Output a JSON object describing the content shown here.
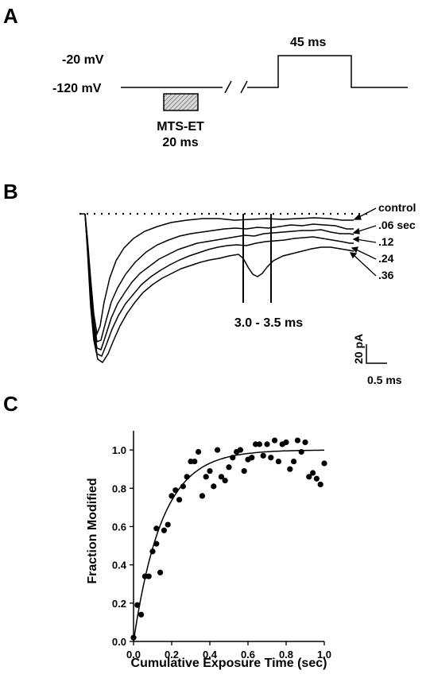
{
  "panels": {
    "a": {
      "letter": "A",
      "v_hold_label": "-20 mV",
      "v_base_label": "-120 mV",
      "pulse_label": "45 ms",
      "reagent_label": "MTS-ET",
      "reagent_duration": "20 ms"
    },
    "b": {
      "letter": "B",
      "trace_labels": [
        "control",
        ".06 sec",
        ".12",
        ".24",
        ".36"
      ],
      "window_label": "3.0 - 3.5 ms",
      "scale_y_label": "20 pA",
      "scale_x_label": "0.5 ms"
    },
    "c": {
      "letter": "C"
    }
  },
  "chart_data": {
    "type": "scatter",
    "xlabel": "Cumulative Exposure Time (sec)",
    "ylabel": "Fraction Modified",
    "xlim": [
      0.0,
      1.0
    ],
    "ylim": [
      0.0,
      1.1
    ],
    "xticks": [
      "0.0",
      "0.2",
      "0.4",
      "0.6",
      "0.8",
      "1.0"
    ],
    "yticks": [
      "0.0",
      "0.2",
      "0.4",
      "0.6",
      "0.8",
      "1.0"
    ],
    "grid": false,
    "points": [
      [
        0.0,
        0.02
      ],
      [
        0.02,
        0.19
      ],
      [
        0.04,
        0.14
      ],
      [
        0.06,
        0.34
      ],
      [
        0.08,
        0.34
      ],
      [
        0.1,
        0.47
      ],
      [
        0.12,
        0.59
      ],
      [
        0.12,
        0.51
      ],
      [
        0.14,
        0.36
      ],
      [
        0.16,
        0.58
      ],
      [
        0.18,
        0.61
      ],
      [
        0.2,
        0.76
      ],
      [
        0.22,
        0.79
      ],
      [
        0.24,
        0.74
      ],
      [
        0.26,
        0.81
      ],
      [
        0.28,
        0.86
      ],
      [
        0.3,
        0.94
      ],
      [
        0.32,
        0.94
      ],
      [
        0.34,
        0.99
      ],
      [
        0.36,
        0.76
      ],
      [
        0.38,
        0.86
      ],
      [
        0.4,
        0.89
      ],
      [
        0.42,
        0.81
      ],
      [
        0.44,
        1.0
      ],
      [
        0.46,
        0.86
      ],
      [
        0.48,
        0.84
      ],
      [
        0.5,
        0.91
      ],
      [
        0.52,
        0.96
      ],
      [
        0.54,
        0.99
      ],
      [
        0.56,
        1.0
      ],
      [
        0.58,
        0.89
      ],
      [
        0.6,
        0.95
      ],
      [
        0.62,
        0.96
      ],
      [
        0.64,
        1.03
      ],
      [
        0.66,
        1.03
      ],
      [
        0.68,
        0.97
      ],
      [
        0.7,
        1.03
      ],
      [
        0.72,
        0.96
      ],
      [
        0.74,
        1.05
      ],
      [
        0.76,
        0.94
      ],
      [
        0.78,
        1.03
      ],
      [
        0.8,
        1.04
      ],
      [
        0.82,
        0.9
      ],
      [
        0.84,
        0.94
      ],
      [
        0.86,
        1.05
      ],
      [
        0.88,
        0.99
      ],
      [
        0.9,
        1.04
      ],
      [
        0.92,
        0.86
      ],
      [
        0.94,
        0.88
      ],
      [
        0.96,
        0.85
      ],
      [
        0.98,
        0.82
      ],
      [
        1.0,
        0.93
      ]
    ],
    "fit": {
      "type": "exponential",
      "plateau": 1.0,
      "tau_sec": 0.15
    }
  }
}
